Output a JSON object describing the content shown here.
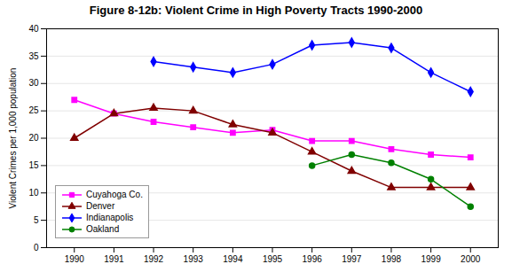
{
  "chart_data": {
    "type": "line",
    "title": "Figure 8-12b: Violent Crime in High Poverty Tracts 1990-2000",
    "ylabel": "Violent Crimes per 1,000 population",
    "x": [
      1990,
      1991,
      1992,
      1993,
      1994,
      1995,
      1996,
      1997,
      1998,
      1999,
      2000
    ],
    "series": [
      {
        "name": "Cuyahoga Co.",
        "color": "#FF00FF",
        "marker": "square",
        "values": [
          27,
          24.5,
          23,
          22,
          21,
          21.5,
          19.5,
          19.5,
          18,
          17,
          16.5
        ]
      },
      {
        "name": "Denver",
        "color": "#800000",
        "marker": "triangle",
        "values": [
          20,
          24.5,
          25.5,
          25,
          22.5,
          21,
          17.5,
          14,
          11,
          11,
          11
        ]
      },
      {
        "name": "Indianapolis",
        "color": "#0000FF",
        "marker": "diamond",
        "values": [
          null,
          null,
          34,
          33,
          32,
          33.5,
          37,
          37.5,
          36.5,
          32,
          28.5
        ]
      },
      {
        "name": "Oakland",
        "color": "#008000",
        "marker": "circle",
        "values": [
          null,
          null,
          null,
          null,
          null,
          null,
          15,
          17,
          15.5,
          12.5,
          7.5
        ]
      }
    ],
    "xlim": [
      1989.3,
      2000.7
    ],
    "xticks": [
      1990,
      1991,
      1992,
      1993,
      1994,
      1995,
      1996,
      1997,
      1998,
      1999,
      2000
    ],
    "ylim": [
      0,
      40
    ],
    "yticks": [
      0,
      5,
      10,
      15,
      20,
      25,
      30,
      35,
      40
    ],
    "grid": "y",
    "legend": "lower left"
  }
}
